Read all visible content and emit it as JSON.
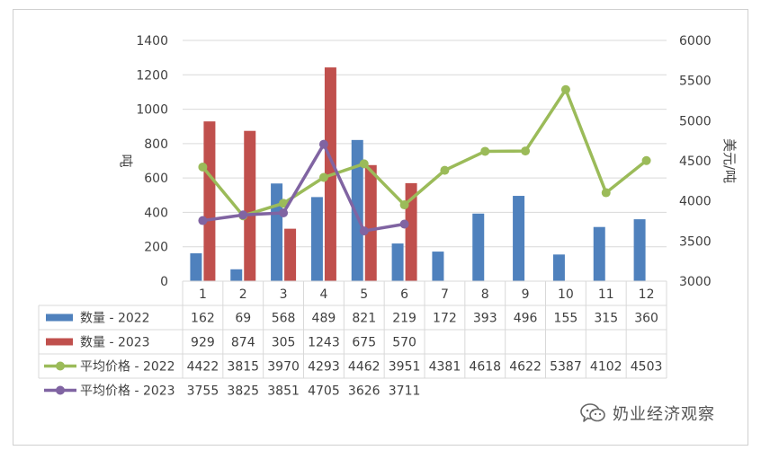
{
  "chart_data": {
    "type": "bar+line",
    "categories": [
      "1",
      "2",
      "3",
      "4",
      "5",
      "6",
      "7",
      "8",
      "9",
      "10",
      "11",
      "12"
    ],
    "series": [
      {
        "name": "数量 - 2022",
        "kind": "bar",
        "axis": "left",
        "color": "#4f81bd",
        "values": [
          162,
          69,
          568,
          489,
          821,
          219,
          172,
          393,
          496,
          155,
          315,
          360
        ],
        "labels": [
          "162",
          "69",
          "568",
          "489",
          "821",
          "219",
          "172",
          "393",
          "496",
          "155",
          "315",
          "360"
        ]
      },
      {
        "name": "数量 - 2023",
        "kind": "bar",
        "axis": "left",
        "color": "#c0504d",
        "values": [
          929,
          874,
          305,
          1243,
          675,
          570,
          null,
          null,
          null,
          null,
          null,
          null
        ],
        "labels": [
          "929",
          "874",
          "305",
          "1243",
          "675",
          "570",
          "",
          "",
          "",
          "",
          "",
          ""
        ]
      },
      {
        "name": "平均价格 - 2022",
        "kind": "line",
        "axis": "right",
        "color": "#9bbb59",
        "values": [
          4422,
          3815,
          3970,
          4293,
          4462,
          3951,
          4381,
          4618,
          4622,
          5387,
          4102,
          4503
        ],
        "labels": [
          "4422",
          "3815",
          "3970",
          "4293",
          "4462",
          "3951",
          "4381",
          "4618",
          "4622",
          "5387",
          "4102",
          "4503"
        ]
      },
      {
        "name": "平均价格 - 2023",
        "kind": "line",
        "axis": "right",
        "color": "#8064a2",
        "values": [
          3755,
          3825,
          3851,
          4705,
          3626,
          3711,
          null,
          null,
          null,
          null,
          null,
          null
        ],
        "labels": [
          "3755",
          "3825",
          "3851",
          "4705",
          "3626",
          "3711",
          "",
          "",
          "",
          "",
          "",
          ""
        ]
      }
    ],
    "y_left": {
      "label": "吨",
      "min": 0,
      "max": 1400,
      "step": 200,
      "ticks": [
        "0",
        "200",
        "400",
        "600",
        "800",
        "1000",
        "1200",
        "1400"
      ]
    },
    "y_right": {
      "label": "美元/吨",
      "min": 3000,
      "max": 6000,
      "step": 500,
      "ticks": [
        "3000",
        "3500",
        "4000",
        "4500",
        "5000",
        "5500",
        "6000"
      ]
    },
    "grid": true,
    "legend": "data-table"
  },
  "watermark": {
    "text": "奶业经济观察",
    "icon": "wechat-icon"
  }
}
